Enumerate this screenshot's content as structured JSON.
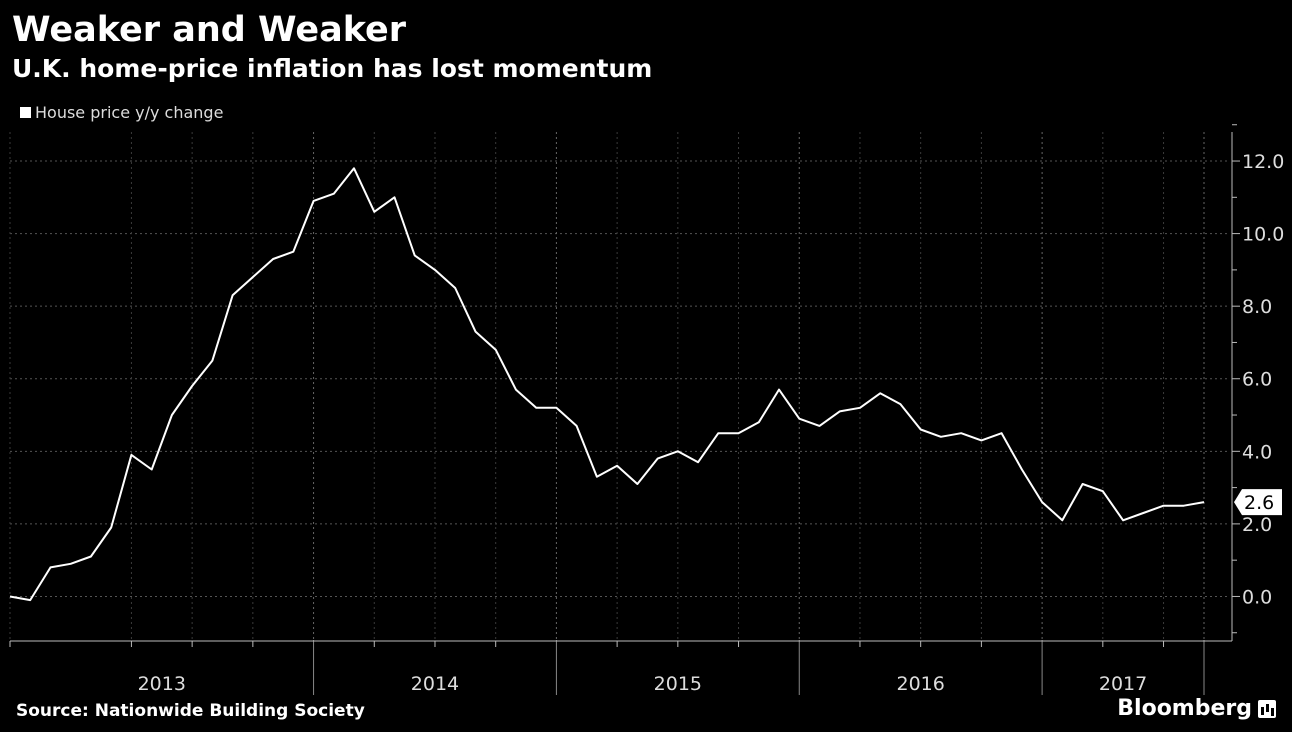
{
  "header": {
    "title": "Weaker and Weaker",
    "subtitle": "U.K. home-price inflation has lost momentum"
  },
  "footer": {
    "source": "Source: Nationwide Building Society",
    "brand": "Bloomberg",
    "brand_icon": "bloomberg-chart-icon"
  },
  "chart_data": {
    "type": "line",
    "title": "Weaker and Weaker",
    "subtitle": "U.K. home-price inflation has lost momentum",
    "legend": {
      "position": "top-left"
    },
    "series": [
      {
        "name": "House price y/y change",
        "color": "#ffffff",
        "x_start": "2012-10",
        "frequency": "monthly",
        "values": [
          0.0,
          -0.1,
          0.8,
          0.9,
          1.1,
          1.9,
          3.9,
          3.5,
          5.0,
          5.8,
          6.5,
          8.3,
          8.8,
          9.3,
          9.5,
          10.9,
          11.1,
          11.8,
          10.6,
          11.0,
          9.4,
          9.0,
          8.5,
          7.3,
          6.8,
          5.7,
          5.2,
          5.2,
          4.7,
          3.3,
          3.6,
          3.1,
          3.8,
          4.0,
          3.7,
          4.5,
          4.5,
          4.8,
          5.7,
          4.9,
          4.7,
          5.1,
          5.2,
          5.6,
          5.3,
          4.6,
          4.4,
          4.5,
          4.3,
          4.5,
          3.5,
          2.6,
          2.1,
          3.1,
          2.9,
          2.1,
          2.3,
          2.5,
          2.5,
          2.6
        ]
      }
    ],
    "last_value_label": "2.6",
    "x_axis": {
      "year_labels": [
        "2013",
        "2014",
        "2015",
        "2016",
        "2017"
      ]
    },
    "y_axis": {
      "position": "right",
      "ylim": [
        -1.2,
        12.8
      ],
      "ticks": [
        0.0,
        2.0,
        4.0,
        6.0,
        8.0,
        10.0,
        12.0
      ],
      "tick_labels": [
        "0.0",
        "2.0",
        "4.0",
        "6.0",
        "8.0",
        "10.0",
        "12.0"
      ]
    },
    "grid": true,
    "colors": {
      "background": "#000000",
      "line": "#ffffff",
      "grid": "#555555"
    }
  }
}
